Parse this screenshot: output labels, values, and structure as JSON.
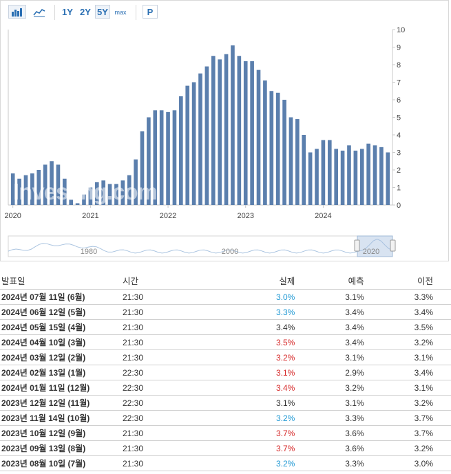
{
  "toolbar": {
    "periods": [
      "1Y",
      "2Y",
      "5Y",
      "max"
    ],
    "active_period": "5Y",
    "p_label": "P",
    "icons": [
      "bar-chart-icon",
      "line-chart-icon"
    ]
  },
  "chart_data": {
    "type": "bar",
    "watermark": "Investing.com",
    "x_tick_labels": [
      "2020",
      "2021",
      "2022",
      "2023",
      "2024"
    ],
    "y_ticks": [
      0,
      1,
      2,
      3,
      4,
      5,
      6,
      7,
      8,
      9,
      10
    ],
    "ylim": [
      0,
      10
    ],
    "grid": false,
    "y_axis_side": "right",
    "bar_color": "#5b7fad",
    "series": [
      {
        "values": [
          1.8,
          1.5,
          1.7,
          1.8,
          2.0,
          2.3,
          2.5,
          2.3,
          1.5,
          0.3,
          0.1,
          0.6,
          1.0,
          1.3,
          1.4,
          1.2,
          1.2,
          1.4,
          1.7,
          2.6,
          4.2,
          5.0,
          5.4,
          5.4,
          5.3,
          5.4,
          6.2,
          6.8,
          7.0,
          7.5,
          7.9,
          8.5,
          8.3,
          8.6,
          9.1,
          8.5,
          8.2,
          8.2,
          7.7,
          7.1,
          6.5,
          6.4,
          6.0,
          5.0,
          4.9,
          4.0,
          3.0,
          3.2,
          3.7,
          3.7,
          3.2,
          3.1,
          3.4,
          3.1,
          3.2,
          3.5,
          3.4,
          3.3,
          3.0
        ]
      }
    ],
    "navigator": {
      "labels": [
        "1980",
        "2000",
        "2020"
      ]
    }
  },
  "table": {
    "headers": [
      "발표일",
      "시간",
      "실제",
      "예측",
      "이전"
    ],
    "rows": [
      {
        "date": "2024년 07월 11일 (6월)",
        "time": "21:30",
        "actual": "3.0%",
        "status": "pos",
        "forecast": "3.1%",
        "previous": "3.3%"
      },
      {
        "date": "2024년 06월 12일 (5월)",
        "time": "21:30",
        "actual": "3.3%",
        "status": "pos",
        "forecast": "3.4%",
        "previous": "3.4%"
      },
      {
        "date": "2024년 05월 15일 (4월)",
        "time": "21:30",
        "actual": "3.4%",
        "status": "none",
        "forecast": "3.4%",
        "previous": "3.5%"
      },
      {
        "date": "2024년 04월 10일 (3월)",
        "time": "21:30",
        "actual": "3.5%",
        "status": "neg",
        "forecast": "3.4%",
        "previous": "3.2%"
      },
      {
        "date": "2024년 03월 12일 (2월)",
        "time": "21:30",
        "actual": "3.2%",
        "status": "neg",
        "forecast": "3.1%",
        "previous": "3.1%"
      },
      {
        "date": "2024년 02월 13일 (1월)",
        "time": "22:30",
        "actual": "3.1%",
        "status": "neg",
        "forecast": "2.9%",
        "previous": "3.4%"
      },
      {
        "date": "2024년 01월 11일 (12월)",
        "time": "22:30",
        "actual": "3.4%",
        "status": "neg",
        "forecast": "3.2%",
        "previous": "3.1%"
      },
      {
        "date": "2023년 12월 12일 (11월)",
        "time": "22:30",
        "actual": "3.1%",
        "status": "none",
        "forecast": "3.1%",
        "previous": "3.2%"
      },
      {
        "date": "2023년 11월 14일 (10월)",
        "time": "22:30",
        "actual": "3.2%",
        "status": "pos",
        "forecast": "3.3%",
        "previous": "3.7%"
      },
      {
        "date": "2023년 10월 12일 (9월)",
        "time": "21:30",
        "actual": "3.7%",
        "status": "neg",
        "forecast": "3.6%",
        "previous": "3.7%"
      },
      {
        "date": "2023년 09월 13일 (8월)",
        "time": "21:30",
        "actual": "3.7%",
        "status": "neg",
        "forecast": "3.6%",
        "previous": "3.2%"
      },
      {
        "date": "2023년 08월 10일 (7월)",
        "time": "21:30",
        "actual": "3.2%",
        "status": "pos",
        "forecast": "3.3%",
        "previous": "3.0%"
      }
    ]
  }
}
